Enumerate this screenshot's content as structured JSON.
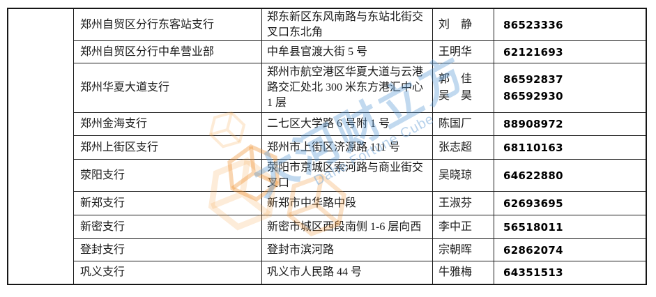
{
  "page": {
    "background": "#ffffff",
    "border_color": "#1a1a1a"
  },
  "table": {
    "merged_cell_text": "",
    "columns": [
      "branch",
      "address",
      "contact",
      "phone"
    ],
    "rows": [
      {
        "branch": "郑州自贸区分行东客站支行",
        "address": "郑东新区东风南路与东站北街交叉口东北角",
        "contacts": [
          "刘　静"
        ],
        "phones": [
          "86523336"
        ]
      },
      {
        "branch": "郑州自贸区分行中牟营业部",
        "address": "中牟县官渡大街 5 号",
        "contacts": [
          "王明华"
        ],
        "phones": [
          "62121693"
        ]
      },
      {
        "branch": "郑州华夏大道支行",
        "address": "郑州市航空港区华夏大道与云港路交汇处北 300 米东方港汇中心 1 层",
        "contacts": [
          "郭　佳",
          "吴　昊"
        ],
        "phones": [
          "86592837",
          "86592930"
        ]
      },
      {
        "branch": "郑州金海支行",
        "address": "二七区大学路 6 号附 1 号",
        "contacts": [
          "陈国厂"
        ],
        "phones": [
          "88908972"
        ]
      },
      {
        "branch": "郑州上街区支行",
        "address": "郑州市上街区济源路 111 号",
        "contacts": [
          "张志超"
        ],
        "phones": [
          "68110163"
        ]
      },
      {
        "branch": "荥阳支行",
        "address": "荥阳市京城区索河路与商业街交叉口",
        "contacts": [
          "吴晓琼"
        ],
        "phones": [
          "64622880"
        ]
      },
      {
        "branch": "新郑支行",
        "address": "新郑市中华路中段",
        "contacts": [
          "王淑芬"
        ],
        "phones": [
          "62693695"
        ]
      },
      {
        "branch": "新密支行",
        "address": "新密市城区西段南侧 1-6 层向西",
        "contacts": [
          "李中正"
        ],
        "phones": [
          "56518011"
        ]
      },
      {
        "branch": "登封支行",
        "address": "登封市滨河路",
        "contacts": [
          "宗朝晖"
        ],
        "phones": [
          "62862074"
        ]
      },
      {
        "branch": "巩义支行",
        "address": "巩义市人民路 44 号",
        "contacts": [
          "牛雅梅"
        ],
        "phones": [
          "64351513"
        ]
      }
    ]
  },
  "watermark": {
    "cn_text": "大河财立方",
    "en_text": "Dahe Fortune Cube",
    "blue": "#5C9CD5",
    "orange": "#F29B3C"
  }
}
